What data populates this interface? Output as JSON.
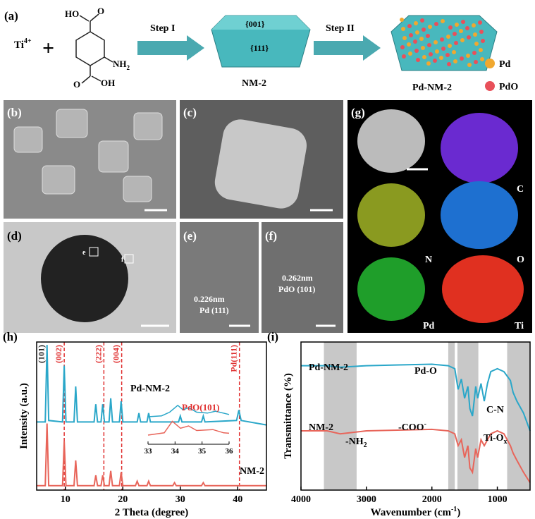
{
  "panel_a": {
    "label": "(a)",
    "ti": {
      "base": "Ti",
      "sup": "4+"
    },
    "plus": "+",
    "molecule": {
      "ho": "HO",
      "o_top": "O",
      "nh2": {
        "base": "NH",
        "sub": "2"
      },
      "o_bottom": "O",
      "oh": "OH"
    },
    "step1": "Step I",
    "step2": "Step II",
    "facet1": "{001}",
    "facet2": "{111}",
    "product1": "NM-2",
    "product2": "Pd-NM-2",
    "legend": [
      {
        "name": "Pd",
        "color": "#f0a830"
      },
      {
        "name": "PdO",
        "color": "#e8505a"
      }
    ]
  },
  "panel_b": {
    "label": "(b)"
  },
  "panel_c": {
    "label": "(c)"
  },
  "panel_d": {
    "label": "(d)",
    "box_e": "e",
    "box_f": "f"
  },
  "panel_e": {
    "label": "(e)",
    "spacing": "0.226nm",
    "plane": "Pd (111)"
  },
  "panel_f": {
    "label": "(f)",
    "spacing": "0.262nm",
    "plane": "PdO (101)"
  },
  "panel_g": {
    "label": "(g)",
    "maps": [
      "C",
      "N",
      "O",
      "Pd",
      "Ti"
    ]
  },
  "chart_data": [
    {
      "type": "line",
      "label": "(h)",
      "x_label": "2 Theta (degree)",
      "y_label": "Intensity (a.u.)",
      "xlim": [
        5,
        45
      ],
      "xticks": [
        10,
        20,
        30,
        40
      ],
      "ylim": [
        0,
        100
      ],
      "series": [
        {
          "name": "Pd-NM-2",
          "color": "#2aa7c9",
          "x": [
            5,
            6.5,
            6.8,
            7.1,
            9.5,
            9.8,
            10.1,
            11.5,
            11.8,
            12.1,
            15,
            15.3,
            15.6,
            16.2,
            16.5,
            16.8,
            17.6,
            17.9,
            18.2,
            19.4,
            19.7,
            20,
            22.5,
            22.8,
            23.1,
            24.2,
            24.5,
            24.8,
            29.7,
            30,
            30.3,
            33.7,
            34,
            34.3,
            39.8,
            40.2,
            40.6,
            45
          ],
          "values": [
            46,
            46,
            98,
            47,
            46,
            84,
            46,
            46,
            70,
            46,
            46,
            58,
            46,
            46,
            58,
            46,
            46,
            62,
            46,
            46,
            60,
            46,
            46,
            52,
            46,
            46,
            52,
            46,
            46,
            50,
            46,
            46,
            50,
            46,
            47,
            54,
            47,
            44
          ]
        },
        {
          "name": "NM-2",
          "color": "#e8655a",
          "x": [
            5,
            6.5,
            6.8,
            7.1,
            9.5,
            9.8,
            10.1,
            11.5,
            11.8,
            12.1,
            15,
            15.3,
            15.6,
            16.2,
            16.5,
            16.8,
            17.6,
            17.9,
            18.2,
            19.4,
            19.7,
            20,
            22.2,
            22.5,
            22.8,
            24.2,
            24.5,
            24.8,
            28.7,
            29,
            29.3,
            33.7,
            34,
            34.3,
            45
          ],
          "values": [
            3,
            3,
            45,
            3,
            3,
            33,
            3,
            3,
            20,
            3,
            3,
            10,
            3,
            3,
            10,
            3,
            3,
            13,
            3,
            3,
            12,
            3,
            3,
            6,
            3,
            3,
            6,
            3,
            3,
            5,
            3,
            3,
            5,
            3,
            3
          ]
        }
      ],
      "reflines": [
        {
          "x": 6.8,
          "label": "(101)",
          "color": "#222222",
          "dashed": false
        },
        {
          "x": 9.8,
          "label": "(002)",
          "color": "#e03030",
          "dashed": true
        },
        {
          "x": 16.7,
          "label": "(222)",
          "color": "#e03030",
          "dashed": true
        },
        {
          "x": 19.8,
          "label": "(004)",
          "color": "#e03030",
          "dashed": true
        },
        {
          "x": 40.3,
          "label": "Pd(111)",
          "color": "#e03030",
          "dashed": true
        }
      ],
      "inset": {
        "xlim": [
          33,
          36
        ],
        "xticks": [
          33,
          34,
          35,
          36
        ],
        "ylim": [
          0,
          10
        ],
        "annotation": "PdO(101)",
        "series": [
          {
            "color": "#2aa7c9",
            "x": [
              33,
              33.5,
              33.8,
              34.1,
              34.3,
              34.5,
              34.8,
              35.2,
              35.5,
              36
            ],
            "values": [
              6,
              6.2,
              7,
              8.5,
              7.5,
              8,
              7,
              6.8,
              7.2,
              6.5
            ]
          },
          {
            "color": "#e8655a",
            "x": [
              33,
              33.6,
              33.9,
              34.2,
              34.5,
              34.8,
              35.4,
              35.8,
              36
            ],
            "values": [
              2,
              2.5,
              5,
              3.5,
              4,
              3,
              3.2,
              2.5,
              2.4
            ]
          }
        ]
      }
    },
    {
      "type": "line",
      "label": "(i)",
      "x_label": {
        "base": "Wavenumber (cm",
        "sup": "-1",
        "end": ")"
      },
      "y_label": "Transmittance (%)",
      "xlim": [
        4000,
        500
      ],
      "xticks": [
        4000,
        3000,
        2000,
        1000
      ],
      "ylim": [
        0,
        100
      ],
      "bands": [
        [
          3650,
          3150
        ],
        [
          1750,
          1650
        ],
        [
          1610,
          1290
        ],
        [
          850,
          500
        ]
      ],
      "series": [
        {
          "name": "Pd-NM-2",
          "color": "#2aa7c9",
          "x": [
            4000,
            3600,
            3400,
            3000,
            2500,
            2000,
            1750,
            1650,
            1600,
            1550,
            1500,
            1450,
            1420,
            1380,
            1330,
            1300,
            1250,
            1200,
            1150,
            1100,
            1000,
            900,
            800,
            760,
            700,
            600,
            500
          ],
          "values": [
            84,
            84,
            83,
            84,
            84.5,
            85,
            84,
            82,
            68,
            75,
            62,
            70,
            55,
            50,
            70,
            62,
            72,
            60,
            72,
            80,
            82,
            80,
            74,
            66,
            60,
            52,
            40
          ]
        },
        {
          "name": "NM-2",
          "color": "#e8655a",
          "x": [
            4000,
            3600,
            3400,
            3000,
            2000,
            1750,
            1650,
            1600,
            1550,
            1500,
            1450,
            1420,
            1380,
            1330,
            1300,
            1250,
            1200,
            1100,
            1000,
            900,
            800,
            760,
            700,
            600,
            500
          ],
          "values": [
            40,
            40,
            38,
            40,
            41,
            40,
            38,
            30,
            34,
            22,
            30,
            15,
            12,
            28,
            22,
            34,
            30,
            38,
            40,
            38,
            30,
            25,
            20,
            12,
            5
          ]
        }
      ],
      "annotations": {
        "pd_o": "Pd-O",
        "c_n": "C-N",
        "nh2": {
          "base": "-NH",
          "sub": "2"
        },
        "coo": {
          "base": "-COO",
          "sup": "-"
        },
        "ti_o": {
          "base": "Ti-O",
          "sub": "x"
        }
      }
    }
  ]
}
